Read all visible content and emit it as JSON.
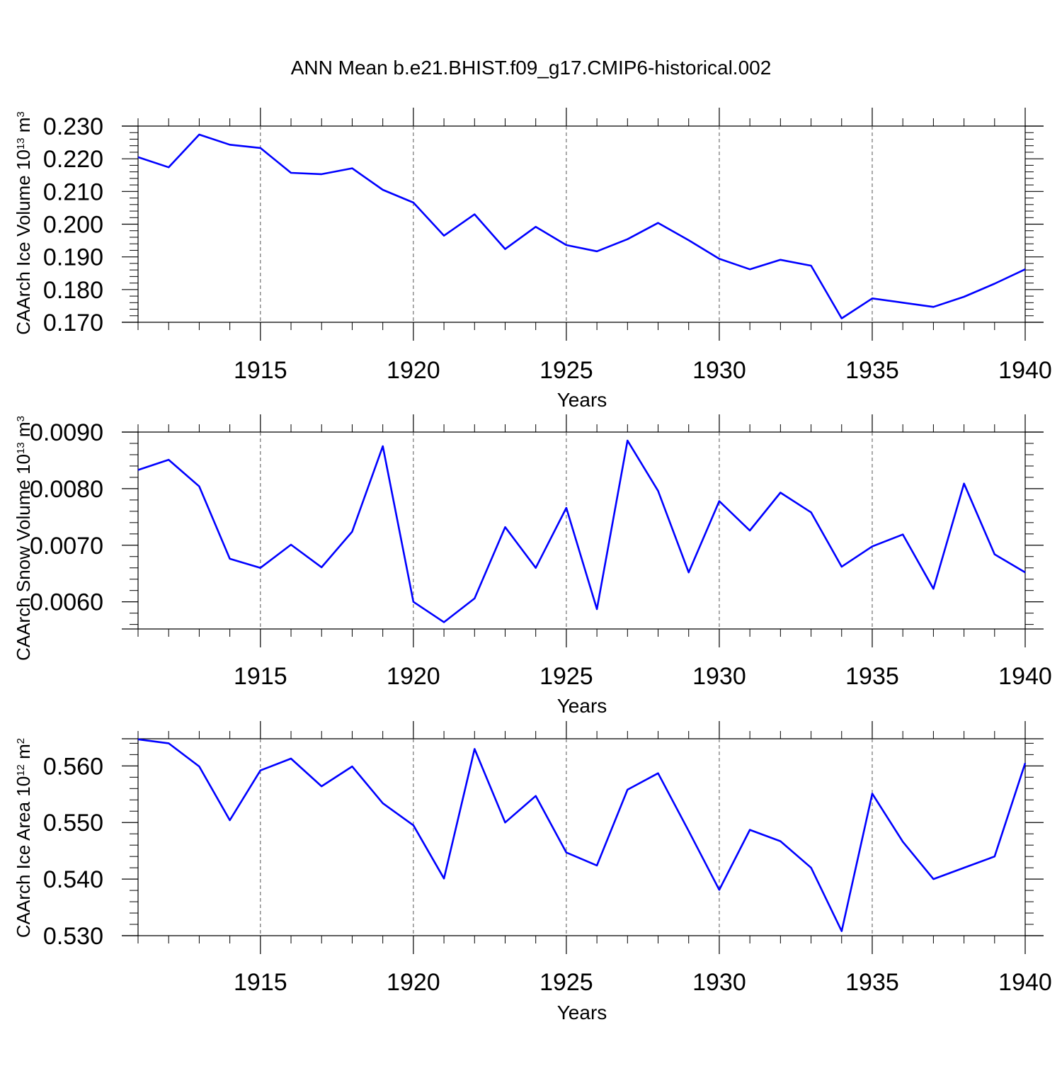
{
  "figure": {
    "title": "ANN Mean b.e21.BHIST.f09_g17.CMIP6-historical.002",
    "line_color": "#0000ff"
  },
  "chart_data": [
    {
      "type": "line",
      "ylabel": "CAArch Ice Volume",
      "yunit_base": "10",
      "yunit_exp": "13",
      "yunit_tail": "m",
      "yunit_tail_exp": "3",
      "xlabel": "Years",
      "xlim": [
        1911,
        1940
      ],
      "ylim": [
        0.17,
        0.23
      ],
      "yticks": [
        0.17,
        0.18,
        0.19,
        0.2,
        0.21,
        0.22,
        0.23
      ],
      "yticklabels": [
        "0.170",
        "0.180",
        "0.190",
        "0.200",
        "0.210",
        "0.220",
        "0.230"
      ],
      "xticks": [
        1915,
        1920,
        1925,
        1930,
        1935,
        1940
      ],
      "xticklabels": [
        "1915",
        "1920",
        "1925",
        "1930",
        "1935",
        "1940"
      ],
      "x": [
        1911,
        1912,
        1913,
        1914,
        1915,
        1916,
        1917,
        1918,
        1919,
        1920,
        1921,
        1922,
        1923,
        1924,
        1925,
        1926,
        1927,
        1928,
        1929,
        1930,
        1931,
        1932,
        1933,
        1934,
        1935,
        1936,
        1937,
        1938,
        1939,
        1940
      ],
      "values": [
        0.2205,
        0.2174,
        0.2274,
        0.2243,
        0.2233,
        0.2157,
        0.2153,
        0.2171,
        0.2105,
        0.2066,
        0.1965,
        0.203,
        0.1924,
        0.1992,
        0.1936,
        0.1917,
        0.1954,
        0.2004,
        0.1951,
        0.1894,
        0.1862,
        0.1891,
        0.1873,
        0.1712,
        0.1773,
        0.176,
        0.1747,
        0.1778,
        0.1818,
        0.1862
      ]
    },
    {
      "type": "line",
      "ylabel": "CAArch Snow Volume",
      "yunit_base": "10",
      "yunit_exp": "13",
      "yunit_tail": "m",
      "yunit_tail_exp": "3",
      "xlabel": "Years",
      "xlim": [
        1911,
        1940
      ],
      "ylim": [
        0.00552,
        0.009
      ],
      "yticks": [
        0.006,
        0.007,
        0.008,
        0.009
      ],
      "yticklabels": [
        "0.0060",
        "0.0070",
        "0.0080",
        "0.0090"
      ],
      "xticks": [
        1915,
        1920,
        1925,
        1930,
        1935,
        1940
      ],
      "xticklabels": [
        "1915",
        "1920",
        "1925",
        "1930",
        "1935",
        "1940"
      ],
      "x": [
        1911,
        1912,
        1913,
        1914,
        1915,
        1916,
        1917,
        1918,
        1919,
        1920,
        1921,
        1922,
        1923,
        1924,
        1925,
        1926,
        1927,
        1928,
        1929,
        1930,
        1931,
        1932,
        1933,
        1934,
        1935,
        1936,
        1937,
        1938,
        1939,
        1940
      ],
      "values": [
        0.00833,
        0.00851,
        0.00804,
        0.00676,
        0.0066,
        0.00701,
        0.00661,
        0.00724,
        0.00875,
        0.006,
        0.00564,
        0.00606,
        0.00732,
        0.0066,
        0.00766,
        0.00587,
        0.00885,
        0.00796,
        0.00652,
        0.00778,
        0.00726,
        0.00793,
        0.00758,
        0.00662,
        0.00698,
        0.00719,
        0.00623,
        0.00809,
        0.00684,
        0.00652
      ]
    },
    {
      "type": "line",
      "ylabel": "CAArch Ice Area",
      "yunit_base": "10",
      "yunit_exp": "12",
      "yunit_tail": "m",
      "yunit_tail_exp": "2",
      "xlabel": "Years",
      "xlim": [
        1911,
        1940
      ],
      "ylim": [
        0.53,
        0.5648
      ],
      "yticks": [
        0.53,
        0.54,
        0.55,
        0.56
      ],
      "yticklabels": [
        "0.530",
        "0.540",
        "0.550",
        "0.560"
      ],
      "xticks": [
        1915,
        1920,
        1925,
        1930,
        1935,
        1940
      ],
      "xticklabels": [
        "1915",
        "1920",
        "1925",
        "1930",
        "1935",
        "1940"
      ],
      "x": [
        1911,
        1912,
        1913,
        1914,
        1915,
        1916,
        1917,
        1918,
        1919,
        1920,
        1921,
        1922,
        1923,
        1924,
        1925,
        1926,
        1927,
        1928,
        1929,
        1930,
        1931,
        1932,
        1933,
        1934,
        1935,
        1936,
        1937,
        1938,
        1939,
        1940
      ],
      "values": [
        0.5647,
        0.564,
        0.5599,
        0.5504,
        0.5592,
        0.5613,
        0.5564,
        0.5599,
        0.5534,
        0.5495,
        0.5401,
        0.563,
        0.55,
        0.5547,
        0.5447,
        0.5424,
        0.5558,
        0.5587,
        0.5485,
        0.5381,
        0.5487,
        0.5467,
        0.542,
        0.5308,
        0.5551,
        0.5466,
        0.54,
        0.542,
        0.544,
        0.5605
      ]
    }
  ]
}
